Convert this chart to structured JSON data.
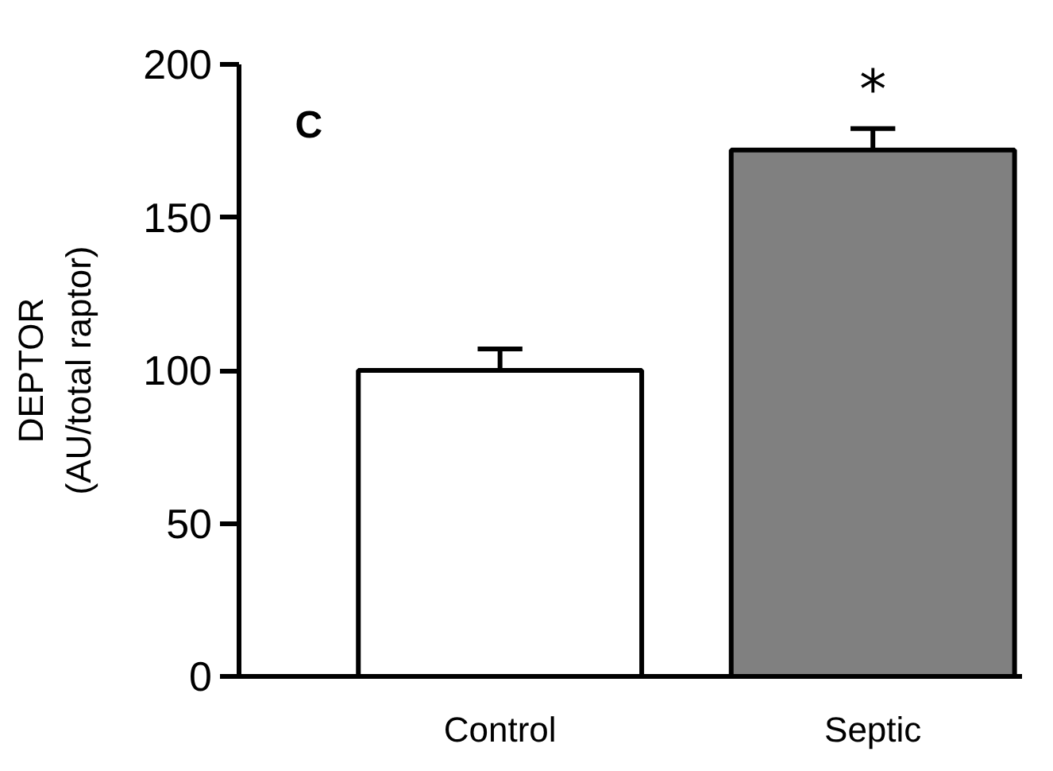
{
  "chart_data": {
    "type": "bar",
    "ylabel": "DEPTOR\n(AU/total raptor)",
    "categories": [
      "Control",
      "Septic"
    ],
    "values": [
      100,
      172
    ],
    "colors": [
      "#ffffff",
      "#808080"
    ],
    "errors": [
      7,
      7
    ],
    "ylim": [
      0,
      200
    ],
    "yticks": [
      0,
      50,
      100,
      150,
      200
    ],
    "grid": false,
    "annotations": [
      "C",
      "*"
    ]
  }
}
